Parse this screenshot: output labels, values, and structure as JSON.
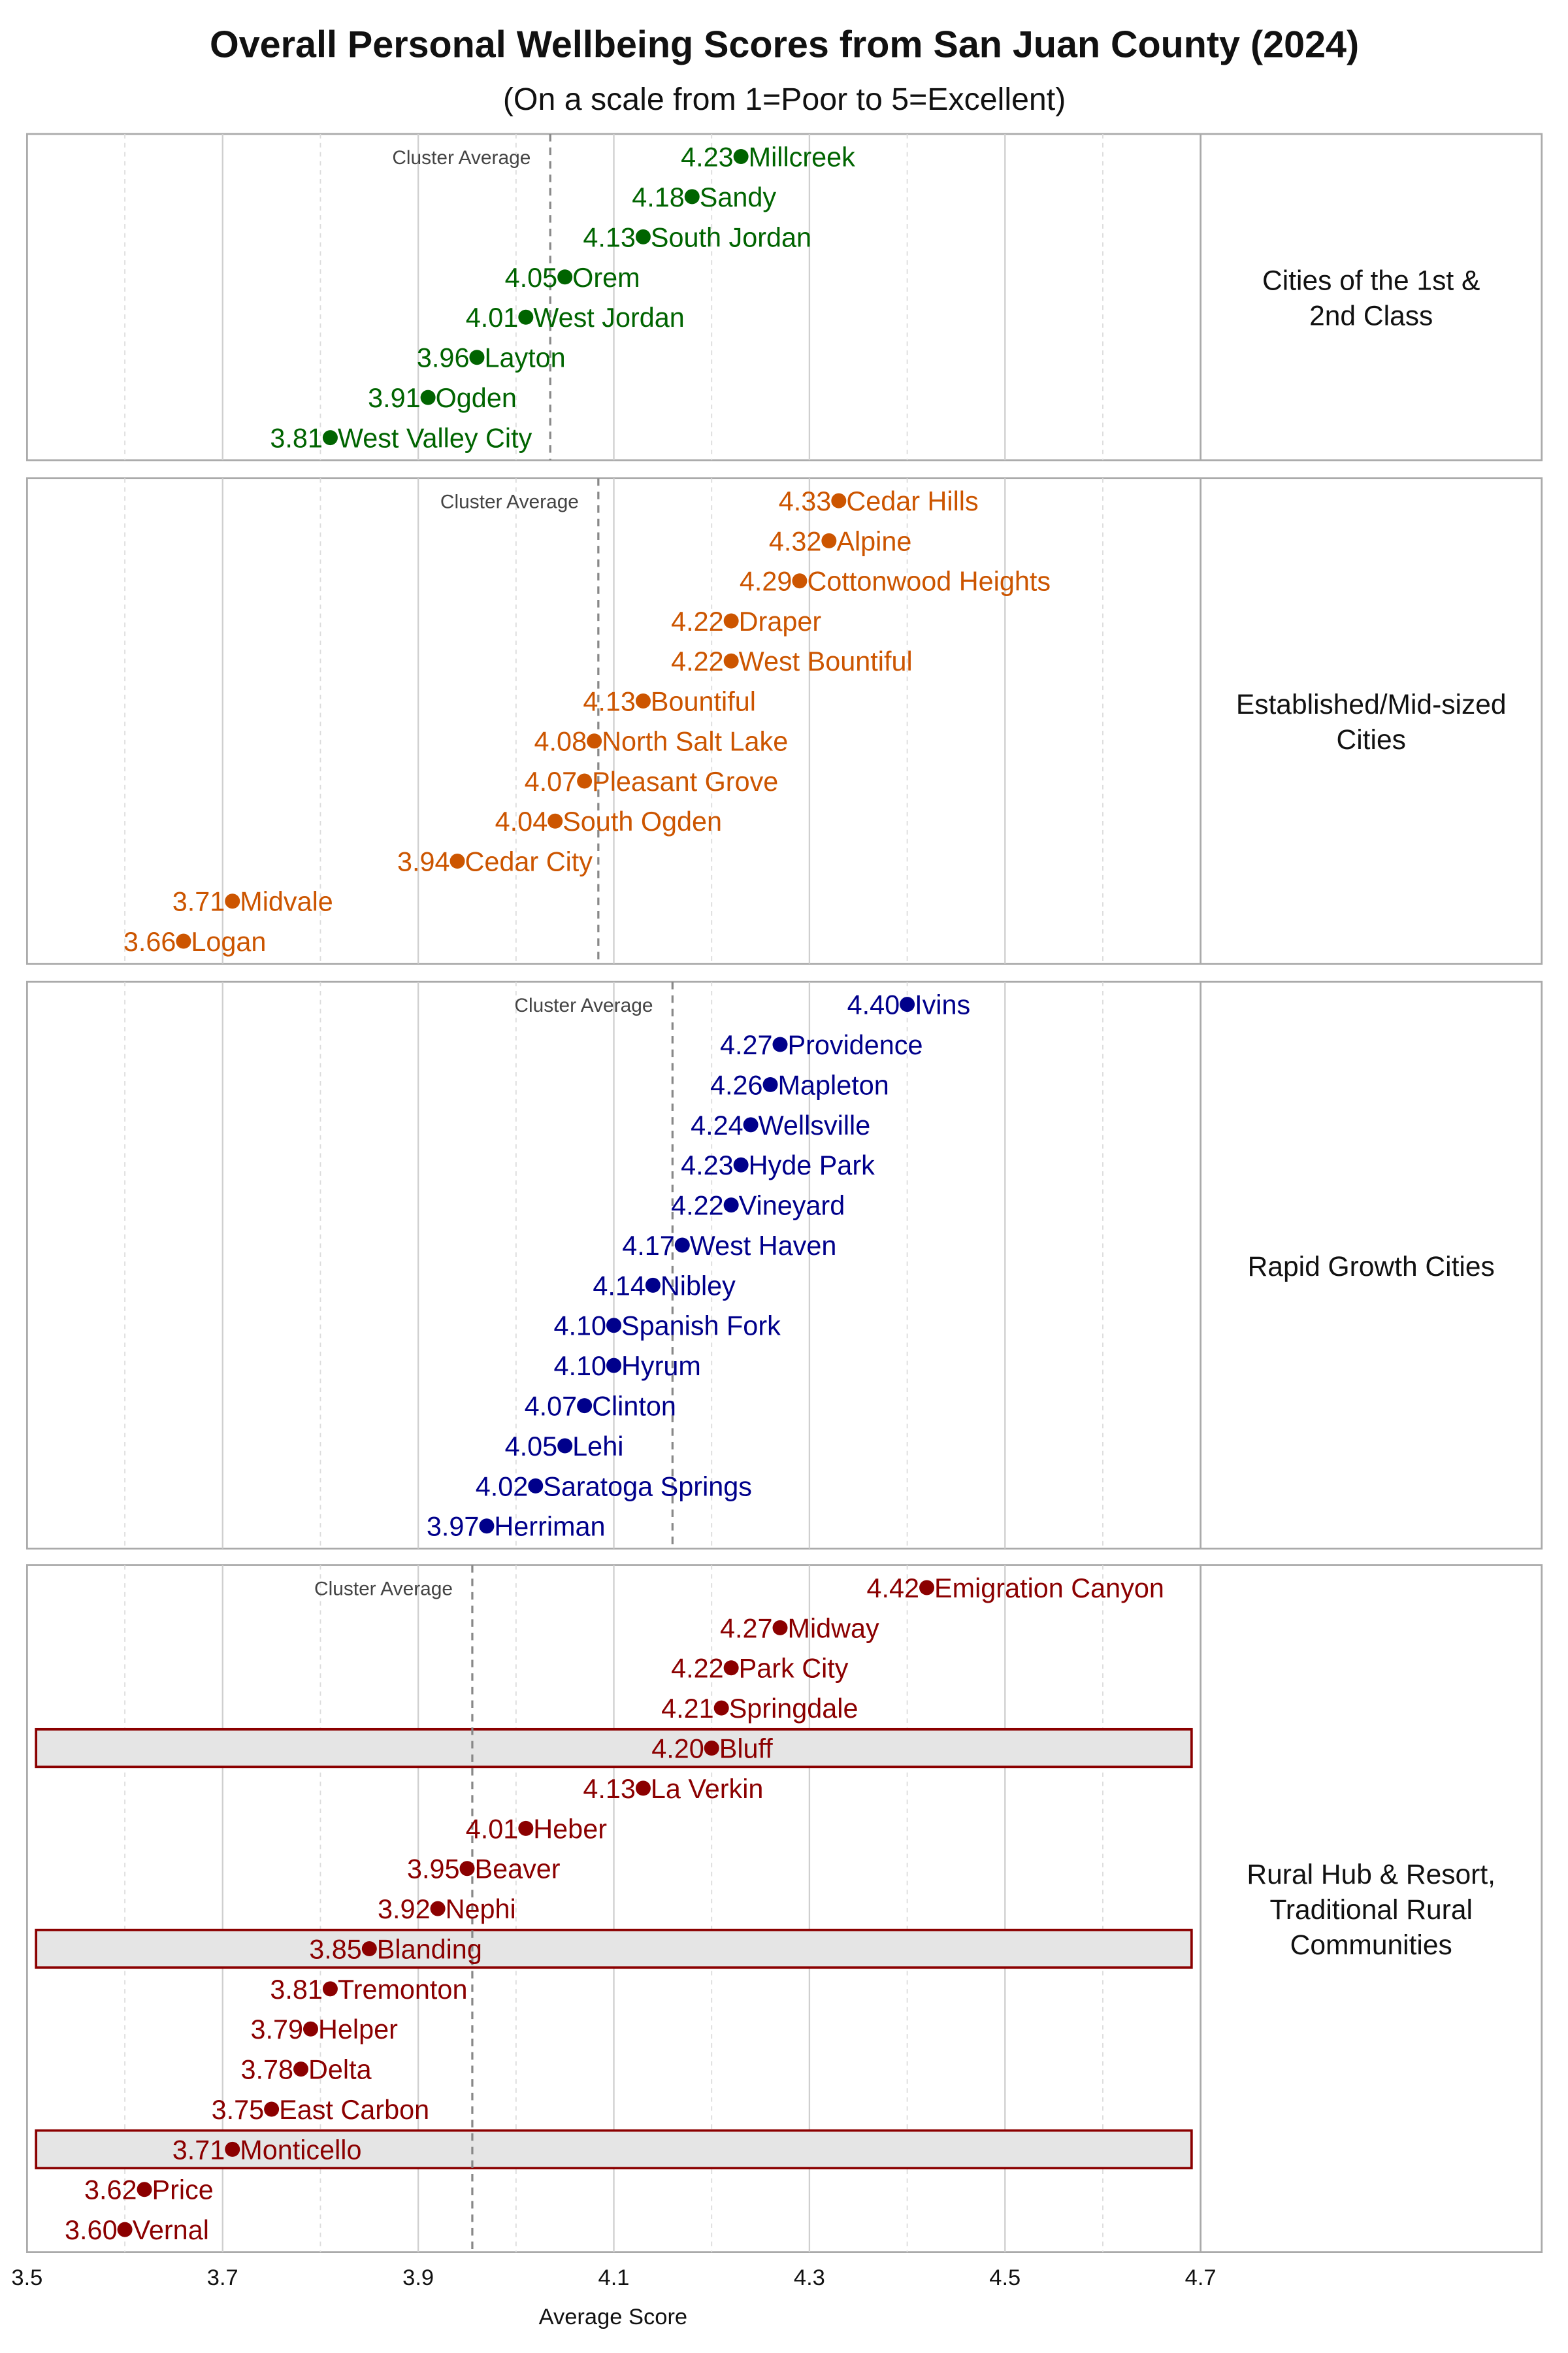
{
  "chart_data": {
    "type": "scatter",
    "title": "Overall Personal Wellbeing Scores from San Juan County (2024)",
    "subtitle": "(On a scale from 1=Poor to 5=Excellent)",
    "xlabel": "Average Score",
    "xlim": [
      3.5,
      4.7
    ],
    "xticks": [
      "3.5",
      "3.7",
      "3.9",
      "4.1",
      "4.3",
      "4.5",
      "4.7"
    ],
    "grid": true,
    "average_label": "Cluster Average",
    "highlight_color": "#8b0000",
    "clusters": [
      {
        "label_lines": [
          "Cities of the 1st &",
          "2nd Class"
        ],
        "color": "#006400",
        "cities": [
          {
            "name": "Millcreek",
            "score": 4.23
          },
          {
            "name": "Sandy",
            "score": 4.18
          },
          {
            "name": "South Jordan",
            "score": 4.13
          },
          {
            "name": "Orem",
            "score": 4.05
          },
          {
            "name": "West Jordan",
            "score": 4.01
          },
          {
            "name": "Layton",
            "score": 3.96
          },
          {
            "name": "Ogden",
            "score": 3.91
          },
          {
            "name": "West Valley City",
            "score": 3.81
          }
        ]
      },
      {
        "label_lines": [
          "Established/Mid-sized",
          "Cities"
        ],
        "color": "#cc5500",
        "cities": [
          {
            "name": "Cedar Hills",
            "score": 4.33
          },
          {
            "name": "Alpine",
            "score": 4.32
          },
          {
            "name": "Cottonwood Heights",
            "score": 4.29
          },
          {
            "name": "Draper",
            "score": 4.22
          },
          {
            "name": "West Bountiful",
            "score": 4.22
          },
          {
            "name": "Bountiful",
            "score": 4.13
          },
          {
            "name": "North Salt Lake",
            "score": 4.08
          },
          {
            "name": "Pleasant Grove",
            "score": 4.07
          },
          {
            "name": "South Ogden",
            "score": 4.04
          },
          {
            "name": "Cedar City",
            "score": 3.94
          },
          {
            "name": "Midvale",
            "score": 3.71
          },
          {
            "name": "Logan",
            "score": 3.66
          }
        ]
      },
      {
        "label_lines": [
          "Rapid Growth Cities"
        ],
        "color": "#00008b",
        "cities": [
          {
            "name": "Ivins",
            "score": 4.4
          },
          {
            "name": "Providence",
            "score": 4.27
          },
          {
            "name": "Mapleton",
            "score": 4.26
          },
          {
            "name": "Wellsville",
            "score": 4.24
          },
          {
            "name": "Hyde Park",
            "score": 4.23
          },
          {
            "name": "Vineyard",
            "score": 4.22
          },
          {
            "name": "West Haven",
            "score": 4.17
          },
          {
            "name": "Nibley",
            "score": 4.14
          },
          {
            "name": "Spanish Fork",
            "score": 4.1
          },
          {
            "name": "Hyrum",
            "score": 4.1
          },
          {
            "name": "Clinton",
            "score": 4.07
          },
          {
            "name": "Lehi",
            "score": 4.05
          },
          {
            "name": "Saratoga Springs",
            "score": 4.02
          },
          {
            "name": "Herriman",
            "score": 3.97
          }
        ]
      },
      {
        "label_lines": [
          "Rural Hub & Resort,",
          "Traditional Rural",
          "Communities"
        ],
        "color": "#8b0000",
        "cities": [
          {
            "name": "Emigration Canyon",
            "score": 4.42
          },
          {
            "name": "Midway",
            "score": 4.27
          },
          {
            "name": "Park City",
            "score": 4.22
          },
          {
            "name": "Springdale",
            "score": 4.21
          },
          {
            "name": "Bluff",
            "score": 4.2,
            "highlight": true
          },
          {
            "name": "La Verkin",
            "score": 4.13
          },
          {
            "name": "Heber",
            "score": 4.01
          },
          {
            "name": "Beaver",
            "score": 3.95
          },
          {
            "name": "Nephi",
            "score": 3.92
          },
          {
            "name": "Blanding",
            "score": 3.85,
            "highlight": true
          },
          {
            "name": "Tremonton",
            "score": 3.81
          },
          {
            "name": "Helper",
            "score": 3.79
          },
          {
            "name": "Delta",
            "score": 3.78
          },
          {
            "name": "East Carbon",
            "score": 3.75
          },
          {
            "name": "Monticello",
            "score": 3.71,
            "highlight": true
          },
          {
            "name": "Price",
            "score": 3.62
          },
          {
            "name": "Vernal",
            "score": 3.6
          }
        ]
      }
    ]
  }
}
